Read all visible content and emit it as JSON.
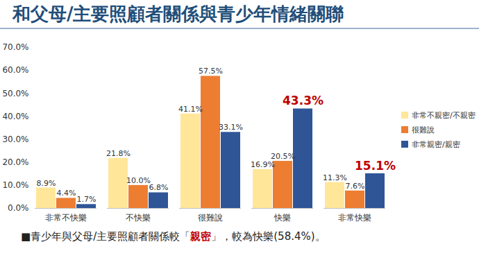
{
  "chart_data": {
    "type": "bar",
    "title": "和父母/主要照顧者關係與青少年情緒關聯",
    "categories": [
      "非常不快樂",
      "不快樂",
      "很難說",
      "快樂",
      "非常快樂"
    ],
    "series": [
      {
        "name": "非常不親密/不親密",
        "color": "#FFE699",
        "values": [
          8.9,
          21.8,
          41.1,
          16.9,
          11.3
        ],
        "value_labels": [
          "8.9%",
          "21.8%",
          "41.1%",
          "16.9%",
          "11.3%"
        ]
      },
      {
        "name": "很難說",
        "color": "#ED7D31",
        "values": [
          4.4,
          10.0,
          57.5,
          20.5,
          7.6
        ],
        "value_labels": [
          "4.4%",
          "10.0%",
          "57.5%",
          "20.5%",
          "7.6%"
        ]
      },
      {
        "name": "非常親密/親密",
        "color": "#2F5597",
        "values": [
          1.7,
          6.8,
          33.1,
          43.3,
          15.1
        ],
        "value_labels": [
          "1.7%",
          "6.8%",
          "33.1%",
          "43.3%",
          "15.1%"
        ]
      }
    ],
    "ylim": [
      0,
      70
    ],
    "yticks": [
      {
        "value": 0,
        "label": "0.0%"
      },
      {
        "value": 10,
        "label": "10.0%"
      },
      {
        "value": 20,
        "label": "20.0%"
      },
      {
        "value": 30,
        "label": "30.0%"
      },
      {
        "value": 40,
        "label": "40.0%"
      },
      {
        "value": 50,
        "label": "50.0%"
      },
      {
        "value": 60,
        "label": "60.0%"
      },
      {
        "value": 70,
        "label": "70.0%"
      }
    ],
    "grid": false,
    "legend": "right",
    "data_labels": true,
    "annotations": [
      "■青少年與父母/主要照顧者關係較「親密」，較為快樂(58.4%)。"
    ]
  }
}
